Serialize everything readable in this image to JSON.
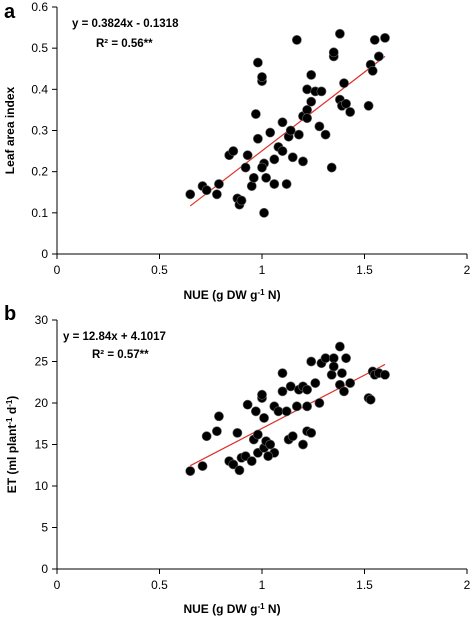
{
  "chart_data": [
    {
      "type": "scatter",
      "panel_label": "a",
      "title": "",
      "xlabel": "NUE (g DW g-1 N)",
      "ylabel": "Leaf area index",
      "xlim": [
        0,
        2
      ],
      "ylim": [
        0,
        0.6
      ],
      "xticks": [
        0,
        0.5,
        1,
        1.5,
        2
      ],
      "yticks": [
        0,
        0.1,
        0.2,
        0.3,
        0.4,
        0.5,
        0.6
      ],
      "xtick_labels": [
        "0",
        "0.5",
        "1",
        "1.5",
        "2"
      ],
      "ytick_labels": [
        "0",
        "0.1",
        "0.2",
        "0.3",
        "0.4",
        "0.5",
        "0.6"
      ],
      "grid": false,
      "equation": "y = 0.3824x - 0.1318",
      "r_squared_label": "R² = 0.56**",
      "trendline": {
        "slope": 0.3824,
        "intercept": -0.1318,
        "x_range": [
          0.65,
          1.6
        ],
        "color": "#e0302a"
      },
      "point_color": "#000000",
      "x": [
        0.65,
        0.71,
        0.73,
        0.78,
        0.79,
        0.84,
        0.86,
        0.88,
        0.89,
        0.9,
        0.92,
        0.95,
        0.96,
        0.97,
        0.98,
        1.0,
        1.0,
        1.01,
        1.01,
        1.02,
        1.04,
        1.06,
        1.06,
        1.08,
        1.1,
        1.1,
        1.12,
        1.13,
        1.14,
        1.15,
        1.17,
        1.18,
        1.2,
        1.2,
        1.22,
        1.22,
        1.24,
        1.24,
        1.26,
        1.28,
        1.29,
        1.31,
        1.34,
        1.35,
        1.35,
        1.38,
        1.38,
        1.39,
        1.4,
        1.41,
        1.43,
        1.52,
        1.53,
        1.54,
        1.55,
        1.57,
        1.6,
        0.98,
        1.0,
        0.93,
        1.22
      ],
      "y": [
        0.145,
        0.165,
        0.155,
        0.145,
        0.17,
        0.24,
        0.25,
        0.135,
        0.12,
        0.13,
        0.21,
        0.165,
        0.185,
        0.34,
        0.465,
        0.42,
        0.43,
        0.1,
        0.22,
        0.185,
        0.295,
        0.17,
        0.23,
        0.26,
        0.25,
        0.32,
        0.17,
        0.285,
        0.3,
        0.235,
        0.52,
        0.29,
        0.225,
        0.335,
        0.35,
        0.4,
        0.37,
        0.435,
        0.395,
        0.31,
        0.395,
        0.29,
        0.21,
        0.48,
        0.49,
        0.375,
        0.535,
        0.36,
        0.415,
        0.365,
        0.345,
        0.36,
        0.46,
        0.445,
        0.52,
        0.48,
        0.525,
        0.28,
        0.21,
        0.24,
        0.33
      ]
    },
    {
      "type": "scatter",
      "panel_label": "b",
      "title": "",
      "xlabel": "NUE (g DW g-1 N)",
      "ylabel": "ET (ml plant-1 d-1)",
      "xlim": [
        0,
        2
      ],
      "ylim": [
        0,
        30
      ],
      "xticks": [
        0,
        0.5,
        1,
        1.5,
        2
      ],
      "yticks": [
        0,
        5,
        10,
        15,
        20,
        25,
        30
      ],
      "xtick_labels": [
        "0",
        "0.5",
        "1",
        "1.5",
        "2"
      ],
      "ytick_labels": [
        "0",
        "5",
        "10",
        "15",
        "20",
        "25",
        "30"
      ],
      "grid": false,
      "equation": "y = 12.84x + 4.1017",
      "r_squared_label": "R² = 0.57**",
      "trendline": {
        "slope": 12.84,
        "intercept": 4.1017,
        "x_range": [
          0.65,
          1.6
        ],
        "color": "#e0302a"
      },
      "point_color": "#000000",
      "x": [
        0.65,
        0.71,
        0.73,
        0.78,
        0.79,
        0.84,
        0.86,
        0.88,
        0.89,
        0.9,
        0.92,
        0.95,
        0.96,
        0.97,
        0.98,
        1.0,
        1.0,
        1.01,
        1.01,
        1.02,
        1.04,
        1.06,
        1.06,
        1.08,
        1.1,
        1.1,
        1.12,
        1.13,
        1.14,
        1.15,
        1.17,
        1.18,
        1.2,
        1.2,
        1.22,
        1.22,
        1.24,
        1.24,
        1.26,
        1.28,
        1.29,
        1.31,
        1.34,
        1.35,
        1.35,
        1.38,
        1.38,
        1.39,
        1.4,
        1.41,
        1.43,
        1.52,
        1.53,
        1.54,
        1.55,
        1.57,
        1.6,
        0.93,
        0.98,
        1.03,
        1.22
      ],
      "y": [
        11.8,
        12.4,
        16.0,
        16.6,
        18.4,
        13.0,
        12.6,
        16.4,
        11.9,
        13.4,
        13.6,
        13.0,
        15.6,
        19.0,
        14.0,
        20.6,
        21.0,
        14.6,
        18.2,
        15.4,
        15.0,
        19.6,
        14.0,
        19.0,
        21.4,
        23.6,
        19.0,
        15.6,
        22.0,
        16.0,
        19.6,
        21.6,
        15.0,
        22.0,
        16.6,
        19.6,
        16.4,
        25.0,
        22.4,
        20.0,
        24.8,
        25.4,
        23.4,
        25.4,
        24.4,
        22.2,
        26.8,
        23.6,
        21.4,
        25.4,
        22.4,
        20.6,
        20.4,
        23.8,
        23.4,
        23.6,
        23.4,
        19.8,
        16.2,
        13.6,
        21.6
      ]
    }
  ]
}
